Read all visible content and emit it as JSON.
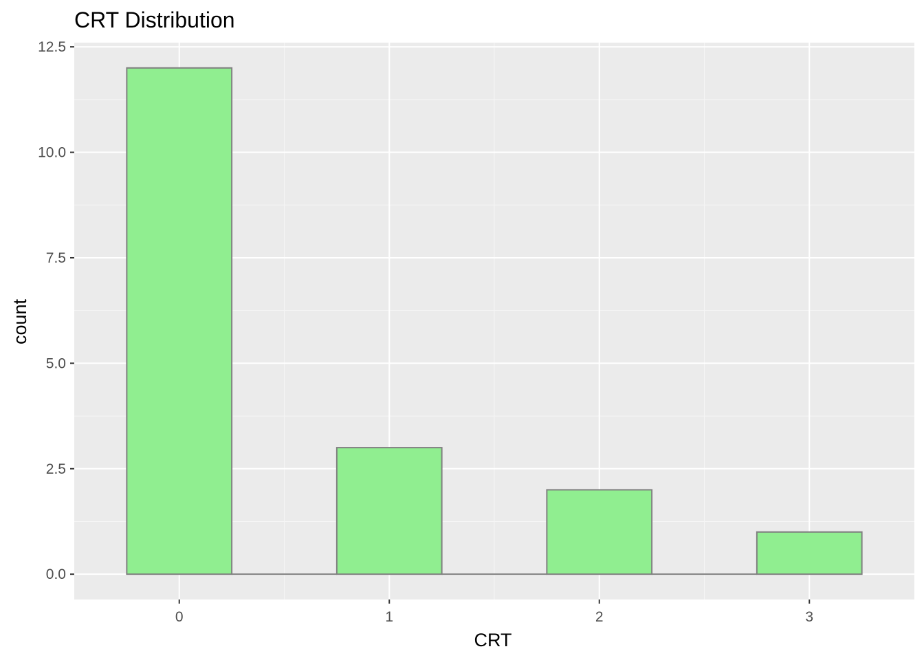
{
  "chart_data": {
    "type": "bar",
    "title": "CRT Distribution",
    "xlabel": "CRT",
    "ylabel": "count",
    "categories": [
      "0",
      "1",
      "2",
      "3"
    ],
    "values": [
      12,
      3,
      2,
      1
    ],
    "x_ticks": [
      "0",
      "1",
      "2",
      "3"
    ],
    "y_ticks": [
      "0.0",
      "2.5",
      "5.0",
      "7.5",
      "10.0",
      "12.5"
    ],
    "ylim": [
      -0.6,
      12.6
    ],
    "xlim": [
      -0.5,
      3.5
    ],
    "grid": true,
    "legend": "none",
    "colors": {
      "bar_fill": "#90ee90",
      "bar_stroke": "#808080",
      "panel_background": "#ebebeb",
      "grid_major": "#ffffff",
      "grid_minor": "#f5f5f5"
    }
  }
}
